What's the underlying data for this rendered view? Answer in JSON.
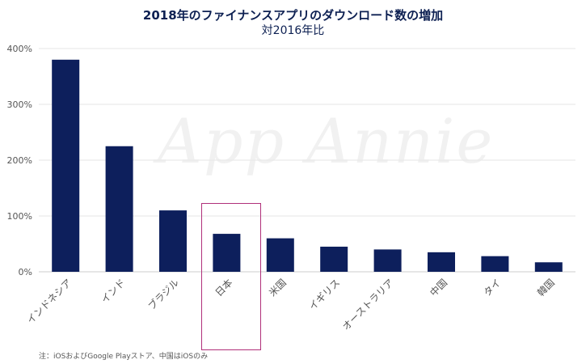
{
  "title": "2018年のファイナンスアプリのダウンロード数の増加",
  "subtitle": "対2016年比",
  "watermark": "App Annie",
  "footnote": "注：iOSおよびGoogle Playストア、中国はiOSのみ",
  "highlight_category": "日本",
  "colors": {
    "bar": "#0d1f5c",
    "grid": "#e6e6e6",
    "axis_text": "#555555",
    "highlight": "#b0307a"
  },
  "chart_data": {
    "type": "bar",
    "title": "2018年のファイナンスアプリのダウンロード数の増加",
    "subtitle": "対2016年比",
    "categories": [
      "インドネシア",
      "インド",
      "ブラジル",
      "日本",
      "米国",
      "イギリス",
      "オーストラリア",
      "中国",
      "タイ",
      "韓国"
    ],
    "values": [
      380,
      225,
      110,
      68,
      60,
      45,
      40,
      35,
      28,
      17
    ],
    "unit": "%",
    "ylim": [
      0,
      400
    ],
    "yticks": [
      "0%",
      "100%",
      "200%",
      "300%",
      "400%"
    ],
    "ytick_values": [
      0,
      100,
      200,
      300,
      400
    ],
    "grid": true,
    "legend": "none"
  }
}
